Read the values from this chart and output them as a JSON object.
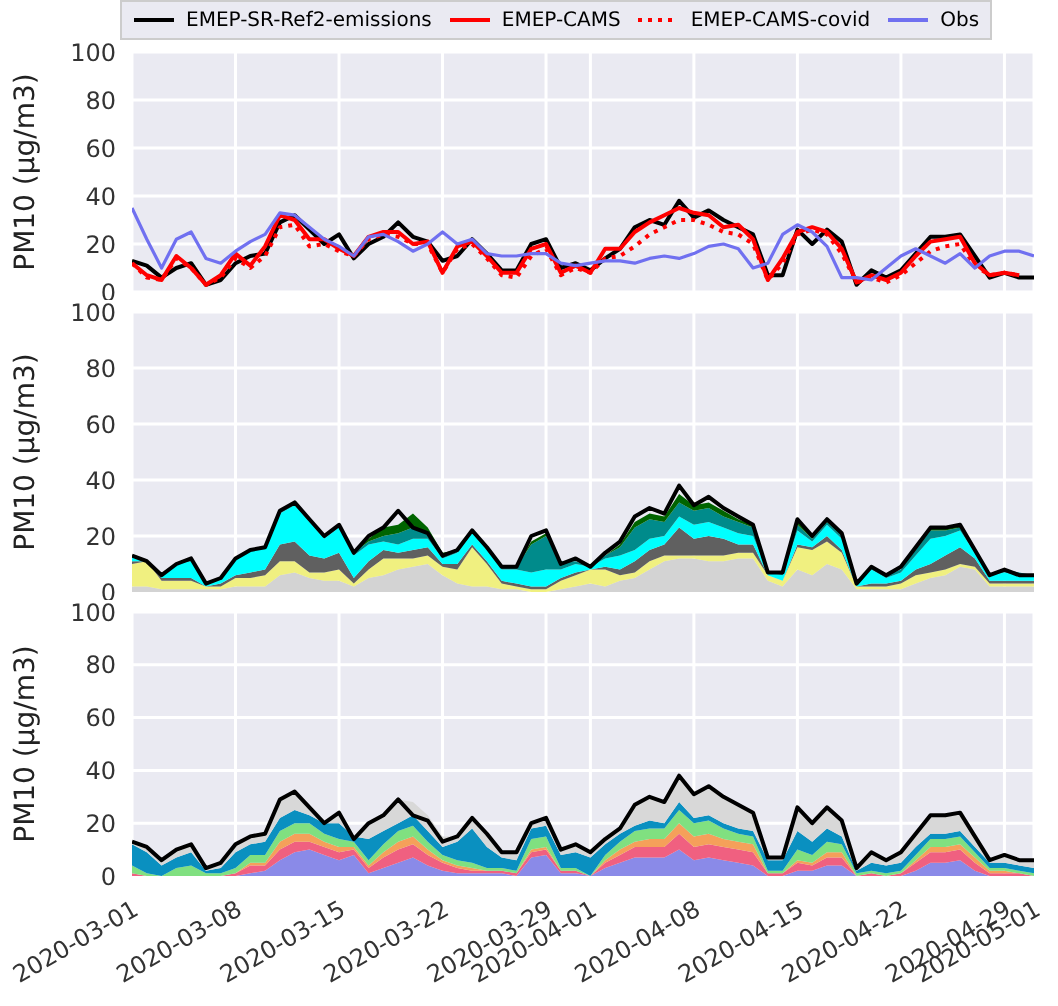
{
  "chart_data": [
    {
      "type": "line",
      "ylabel": "PM10 (µg/m3)",
      "ylim": [
        0,
        100
      ],
      "yticks": [
        0,
        20,
        40,
        60,
        80,
        100
      ],
      "grid": true,
      "legend": "top",
      "tick_labels": "y",
      "xlim": [
        "2020-03-01",
        "2020-05-01"
      ],
      "xticks": [
        "2020-03-01",
        "2020-03-08",
        "2020-03-15",
        "2020-03-22",
        "2020-03-29",
        "2020-04-01",
        "2020-04-08",
        "2020-04-15",
        "2020-04-22",
        "2020-04-29",
        "2020-05-01"
      ],
      "x": [
        "2020-03-01",
        "2020-03-02",
        "2020-03-03",
        "2020-03-04",
        "2020-03-05",
        "2020-03-06",
        "2020-03-07",
        "2020-03-08",
        "2020-03-09",
        "2020-03-10",
        "2020-03-11",
        "2020-03-12",
        "2020-03-13",
        "2020-03-14",
        "2020-03-15",
        "2020-03-16",
        "2020-03-17",
        "2020-03-18",
        "2020-03-19",
        "2020-03-20",
        "2020-03-21",
        "2020-03-22",
        "2020-03-23",
        "2020-03-24",
        "2020-03-25",
        "2020-03-26",
        "2020-03-27",
        "2020-03-28",
        "2020-03-29",
        "2020-03-30",
        "2020-03-31",
        "2020-04-01",
        "2020-04-02",
        "2020-04-03",
        "2020-04-04",
        "2020-04-05",
        "2020-04-06",
        "2020-04-07",
        "2020-04-08",
        "2020-04-09",
        "2020-04-10",
        "2020-04-11",
        "2020-04-12",
        "2020-04-13",
        "2020-04-14",
        "2020-04-15",
        "2020-04-16",
        "2020-04-17",
        "2020-04-18",
        "2020-04-19",
        "2020-04-20",
        "2020-04-21",
        "2020-04-22",
        "2020-04-23",
        "2020-04-24",
        "2020-04-25",
        "2020-04-26",
        "2020-04-27",
        "2020-04-28",
        "2020-04-29",
        "2020-04-30",
        "2020-05-01"
      ],
      "series": [
        {
          "name": "EMEP-SR-Ref2-emissions",
          "color": "#000000",
          "line_style": "solid",
          "values": [
            13,
            11,
            6,
            10,
            12,
            3,
            5,
            12,
            15,
            16,
            29,
            32,
            26,
            20,
            24,
            14,
            20,
            23,
            29,
            23,
            21,
            13,
            15,
            22,
            16,
            9,
            9,
            20,
            22,
            10,
            12,
            9,
            14,
            18,
            27,
            30,
            28,
            38,
            31,
            34,
            30,
            27,
            24,
            7,
            7,
            26,
            20,
            26,
            21,
            3,
            9,
            6,
            9,
            16,
            23,
            23,
            24,
            15,
            6,
            8,
            6,
            6
          ]
        },
        {
          "name": "EMEP-CAMS",
          "color": "#ff0000",
          "line_style": "solid",
          "values": [
            12,
            7,
            5,
            15,
            10,
            3,
            7,
            16,
            11,
            19,
            32,
            30,
            22,
            22,
            18,
            15,
            23,
            25,
            25,
            20,
            21,
            8,
            19,
            21,
            15,
            8,
            8,
            18,
            20,
            8,
            11,
            8,
            18,
            18,
            25,
            29,
            32,
            35,
            33,
            32,
            27,
            28,
            22,
            5,
            14,
            25,
            27,
            25,
            18,
            4,
            7,
            5,
            8,
            15,
            21,
            22,
            23,
            12,
            7,
            8,
            7,
            null
          ]
        },
        {
          "name": "EMEP-CAMS-covid",
          "color": "#ff0000",
          "line_style": "dotted",
          "values": [
            12,
            6,
            5,
            14,
            10,
            3,
            6,
            14,
            10,
            15,
            27,
            28,
            19,
            20,
            17,
            15,
            22,
            24,
            23,
            20,
            20,
            8,
            18,
            20,
            14,
            7,
            6,
            15,
            18,
            7,
            10,
            8,
            14,
            15,
            19,
            24,
            27,
            30,
            30,
            28,
            25,
            24,
            20,
            5,
            12,
            24,
            26,
            24,
            16,
            4,
            6,
            4,
            7,
            12,
            17,
            19,
            20,
            11,
            7,
            8,
            7,
            null
          ]
        },
        {
          "name": "Obs",
          "color": "#7070f0",
          "line_style": "solid",
          "values": [
            35,
            22,
            10,
            22,
            25,
            14,
            12,
            17,
            21,
            24,
            33,
            32,
            27,
            22,
            19,
            15,
            23,
            24,
            21,
            17,
            20,
            25,
            20,
            22,
            16,
            15,
            15,
            16,
            16,
            12,
            11,
            12,
            13,
            13,
            12,
            14,
            15,
            14,
            16,
            19,
            20,
            18,
            10,
            12,
            24,
            28,
            25,
            19,
            6,
            6,
            5,
            10,
            15,
            18,
            15,
            12,
            16,
            10,
            15,
            17,
            17,
            15
          ]
        }
      ]
    },
    {
      "type": "area",
      "stacked": true,
      "ylabel": "PM10 (µg/m3)",
      "ylim": [
        0,
        100
      ],
      "yticks": [
        0,
        20,
        40,
        60,
        80,
        100
      ],
      "grid": true,
      "tick_labels": "y",
      "xlim": [
        "2020-03-01",
        "2020-05-01"
      ],
      "xticks": [
        "2020-03-01",
        "2020-03-08",
        "2020-03-15",
        "2020-03-22",
        "2020-03-29",
        "2020-04-01",
        "2020-04-08",
        "2020-04-15",
        "2020-04-22",
        "2020-04-29",
        "2020-05-01"
      ],
      "x": [
        "2020-03-01",
        "2020-03-02",
        "2020-03-03",
        "2020-03-04",
        "2020-03-05",
        "2020-03-06",
        "2020-03-07",
        "2020-03-08",
        "2020-03-09",
        "2020-03-10",
        "2020-03-11",
        "2020-03-12",
        "2020-03-13",
        "2020-03-14",
        "2020-03-15",
        "2020-03-16",
        "2020-03-17",
        "2020-03-18",
        "2020-03-19",
        "2020-03-20",
        "2020-03-21",
        "2020-03-22",
        "2020-03-23",
        "2020-03-24",
        "2020-03-25",
        "2020-03-26",
        "2020-03-27",
        "2020-03-28",
        "2020-03-29",
        "2020-03-30",
        "2020-03-31",
        "2020-04-01",
        "2020-04-02",
        "2020-04-03",
        "2020-04-04",
        "2020-04-05",
        "2020-04-06",
        "2020-04-07",
        "2020-04-08",
        "2020-04-09",
        "2020-04-10",
        "2020-04-11",
        "2020-04-12",
        "2020-04-13",
        "2020-04-14",
        "2020-04-15",
        "2020-04-16",
        "2020-04-17",
        "2020-04-18",
        "2020-04-19",
        "2020-04-20",
        "2020-04-21",
        "2020-04-22",
        "2020-04-23",
        "2020-04-24",
        "2020-04-25",
        "2020-04-26",
        "2020-04-27",
        "2020-04-28",
        "2020-04-29",
        "2020-04-30",
        "2020-05-01"
      ],
      "series": [
        {
          "color": "#d3d3d3",
          "values": [
            2,
            2,
            1,
            1,
            1,
            1,
            1,
            2,
            2,
            2,
            6,
            7,
            5,
            4,
            4,
            2,
            5,
            6,
            8,
            9,
            10,
            6,
            3,
            2,
            2,
            1,
            1,
            0,
            0,
            1,
            2,
            3,
            2,
            4,
            5,
            8,
            11,
            12,
            12,
            11,
            11,
            12,
            12,
            4,
            2,
            8,
            6,
            10,
            8,
            1,
            1,
            1,
            1,
            3,
            5,
            6,
            9,
            8,
            2,
            2,
            2,
            2
          ]
        },
        {
          "color": "#f0f080",
          "values": [
            8,
            9,
            3,
            3,
            3,
            1,
            1,
            3,
            3,
            4,
            5,
            4,
            2,
            3,
            4,
            1,
            3,
            6,
            4,
            3,
            3,
            3,
            5,
            14,
            8,
            2,
            1,
            1,
            1,
            3,
            4,
            5,
            6,
            2,
            2,
            3,
            2,
            1,
            1,
            2,
            2,
            2,
            2,
            2,
            2,
            8,
            9,
            8,
            6,
            1,
            1,
            1,
            2,
            3,
            2,
            2,
            1,
            1,
            1,
            1,
            1,
            1
          ]
        },
        {
          "color": "#606060",
          "values": [
            1,
            0,
            1,
            1,
            1,
            0,
            1,
            1,
            2,
            2,
            6,
            7,
            6,
            5,
            6,
            2,
            3,
            3,
            2,
            3,
            3,
            1,
            2,
            1,
            1,
            1,
            1,
            1,
            1,
            1,
            1,
            0,
            1,
            2,
            4,
            4,
            4,
            10,
            6,
            7,
            6,
            3,
            3,
            0,
            0,
            1,
            1,
            2,
            1,
            0,
            1,
            1,
            1,
            2,
            3,
            5,
            6,
            3,
            1,
            1,
            1,
            1
          ]
        },
        {
          "color": "#00ffff",
          "values": [
            2,
            0,
            1,
            5,
            6,
            1,
            2,
            6,
            8,
            8,
            11,
            13,
            12,
            7,
            9,
            8,
            6,
            3,
            3,
            4,
            3,
            2,
            4,
            4,
            4,
            4,
            5,
            5,
            6,
            3,
            3,
            1,
            3,
            5,
            4,
            4,
            3,
            4,
            5,
            5,
            4,
            4,
            3,
            1,
            2,
            5,
            2,
            4,
            4,
            1,
            5,
            2,
            3,
            5,
            9,
            7,
            6,
            2,
            2,
            3,
            2,
            2
          ]
        },
        {
          "color": "#008b8b",
          "values": [
            0,
            0,
            0,
            0,
            1,
            0,
            0,
            0,
            0,
            0,
            1,
            1,
            1,
            1,
            1,
            1,
            1,
            2,
            4,
            4,
            2,
            1,
            1,
            1,
            1,
            1,
            1,
            10,
            12,
            3,
            1,
            0,
            1,
            3,
            8,
            7,
            5,
            5,
            5,
            5,
            4,
            4,
            3,
            0,
            1,
            2,
            1,
            1,
            1,
            0,
            1,
            1,
            1,
            2,
            3,
            2,
            1,
            1,
            0,
            1,
            1,
            0
          ]
        },
        {
          "color": "#006400",
          "values": [
            0,
            0,
            0,
            0,
            0,
            0,
            0,
            0,
            0,
            0,
            0,
            0,
            0,
            0,
            0,
            0,
            1,
            3,
            3,
            5,
            2,
            1,
            0,
            0,
            0,
            0,
            0,
            1,
            1,
            0,
            0,
            0,
            0,
            1,
            2,
            2,
            2,
            3,
            2,
            2,
            2,
            1,
            1,
            0,
            0,
            1,
            1,
            1,
            1,
            0,
            0,
            0,
            0,
            1,
            1,
            1,
            1,
            0,
            0,
            0,
            0,
            0
          ]
        },
        {
          "type": "line",
          "color": "#000000",
          "values": [
            13,
            11,
            6,
            10,
            12,
            3,
            5,
            12,
            15,
            16,
            29,
            32,
            26,
            20,
            24,
            14,
            20,
            23,
            29,
            23,
            21,
            13,
            15,
            22,
            16,
            9,
            9,
            20,
            22,
            10,
            12,
            9,
            14,
            18,
            27,
            30,
            28,
            38,
            31,
            34,
            30,
            27,
            24,
            7,
            7,
            26,
            20,
            26,
            21,
            3,
            9,
            6,
            9,
            16,
            23,
            23,
            24,
            15,
            6,
            8,
            6,
            6
          ]
        }
      ]
    },
    {
      "type": "area",
      "stacked": true,
      "ylabel": "PM10 (µg/m3)",
      "ylim": [
        0,
        100
      ],
      "yticks": [
        0,
        20,
        40,
        60,
        80,
        100
      ],
      "grid": true,
      "xlim": [
        "2020-03-01",
        "2020-05-01"
      ],
      "xticks": [
        "2020-03-01",
        "2020-03-08",
        "2020-03-15",
        "2020-03-22",
        "2020-03-29",
        "2020-04-01",
        "2020-04-08",
        "2020-04-15",
        "2020-04-22",
        "2020-04-29",
        "2020-05-01"
      ],
      "x": [
        "2020-03-01",
        "2020-03-02",
        "2020-03-03",
        "2020-03-04",
        "2020-03-05",
        "2020-03-06",
        "2020-03-07",
        "2020-03-08",
        "2020-03-09",
        "2020-03-10",
        "2020-03-11",
        "2020-03-12",
        "2020-03-13",
        "2020-03-14",
        "2020-03-15",
        "2020-03-16",
        "2020-03-17",
        "2020-03-18",
        "2020-03-19",
        "2020-03-20",
        "2020-03-21",
        "2020-03-22",
        "2020-03-23",
        "2020-03-24",
        "2020-03-25",
        "2020-03-26",
        "2020-03-27",
        "2020-03-28",
        "2020-03-29",
        "2020-03-30",
        "2020-03-31",
        "2020-04-01",
        "2020-04-02",
        "2020-04-03",
        "2020-04-04",
        "2020-04-05",
        "2020-04-06",
        "2020-04-07",
        "2020-04-08",
        "2020-04-09",
        "2020-04-10",
        "2020-04-11",
        "2020-04-12",
        "2020-04-13",
        "2020-04-14",
        "2020-04-15",
        "2020-04-16",
        "2020-04-17",
        "2020-04-18",
        "2020-04-19",
        "2020-04-20",
        "2020-04-21",
        "2020-04-22",
        "2020-04-23",
        "2020-04-24",
        "2020-04-25",
        "2020-04-26",
        "2020-04-27",
        "2020-04-28",
        "2020-04-29",
        "2020-04-30",
        "2020-05-01"
      ],
      "series": [
        {
          "color": "#8a8ae8",
          "values": [
            0,
            0,
            0,
            0,
            0,
            0,
            0,
            0,
            1,
            2,
            6,
            9,
            10,
            8,
            6,
            8,
            1,
            3,
            5,
            7,
            4,
            2,
            1,
            1,
            1,
            1,
            0,
            7,
            8,
            1,
            1,
            0,
            3,
            5,
            7,
            7,
            7,
            10,
            6,
            7,
            6,
            5,
            4,
            0,
            0,
            2,
            2,
            4,
            4,
            0,
            0,
            0,
            0,
            2,
            5,
            5,
            6,
            2,
            0,
            0,
            0,
            0
          ]
        },
        {
          "color": "#f06080",
          "values": [
            1,
            0,
            0,
            0,
            0,
            0,
            0,
            1,
            3,
            2,
            4,
            4,
            3,
            3,
            3,
            2,
            2,
            4,
            5,
            5,
            4,
            3,
            2,
            1,
            1,
            1,
            1,
            2,
            2,
            1,
            1,
            0,
            2,
            3,
            4,
            4,
            4,
            6,
            5,
            5,
            5,
            5,
            5,
            1,
            1,
            3,
            2,
            3,
            3,
            0,
            1,
            0,
            1,
            3,
            4,
            4,
            4,
            3,
            1,
            1,
            1,
            0
          ]
        },
        {
          "color": "#f5a05a",
          "values": [
            0,
            0,
            0,
            0,
            0,
            0,
            0,
            0,
            1,
            1,
            3,
            3,
            3,
            2,
            2,
            1,
            1,
            2,
            3,
            3,
            2,
            1,
            1,
            1,
            0,
            0,
            0,
            1,
            1,
            0,
            0,
            0,
            1,
            2,
            2,
            3,
            3,
            4,
            4,
            4,
            3,
            3,
            3,
            0,
            0,
            1,
            1,
            2,
            2,
            0,
            0,
            0,
            0,
            1,
            2,
            2,
            2,
            2,
            1,
            1,
            0,
            0
          ]
        },
        {
          "color": "#80e080",
          "values": [
            3,
            1,
            0,
            3,
            4,
            1,
            1,
            2,
            3,
            3,
            4,
            4,
            4,
            3,
            3,
            2,
            2,
            3,
            4,
            4,
            3,
            2,
            2,
            2,
            1,
            1,
            1,
            4,
            4,
            1,
            1,
            0,
            2,
            3,
            4,
            4,
            4,
            5,
            5,
            5,
            4,
            3,
            3,
            1,
            1,
            4,
            3,
            4,
            3,
            1,
            1,
            1,
            1,
            2,
            3,
            3,
            3,
            2,
            1,
            1,
            1,
            1
          ]
        },
        {
          "color": "#0a90c0",
          "values": [
            8,
            8,
            4,
            4,
            5,
            1,
            2,
            6,
            4,
            5,
            5,
            5,
            3,
            4,
            6,
            2,
            8,
            5,
            3,
            4,
            4,
            3,
            7,
            13,
            8,
            4,
            4,
            4,
            4,
            5,
            6,
            7,
            4,
            3,
            2,
            3,
            2,
            3,
            2,
            2,
            2,
            2,
            2,
            4,
            4,
            7,
            5,
            5,
            3,
            1,
            3,
            3,
            3,
            3,
            2,
            2,
            2,
            2,
            2,
            2,
            2,
            2
          ]
        },
        {
          "color": "#d8d8d8",
          "values": [
            1,
            2,
            2,
            3,
            3,
            1,
            2,
            3,
            3,
            3,
            7,
            7,
            3,
            0,
            4,
            0,
            6,
            6,
            9,
            5,
            6,
            4,
            2,
            4,
            5,
            2,
            3,
            2,
            3,
            3,
            3,
            2,
            2,
            2,
            8,
            9,
            8,
            10,
            9,
            11,
            10,
            9,
            7,
            1,
            1,
            9,
            7,
            8,
            6,
            1,
            4,
            2,
            4,
            5,
            7,
            7,
            7,
            4,
            1,
            3,
            2,
            3
          ]
        },
        {
          "type": "line",
          "color": "#000000",
          "values": [
            13,
            11,
            6,
            10,
            12,
            3,
            5,
            12,
            15,
            16,
            29,
            32,
            26,
            20,
            24,
            14,
            20,
            23,
            29,
            23,
            21,
            13,
            15,
            22,
            16,
            9,
            9,
            20,
            22,
            10,
            12,
            9,
            14,
            18,
            27,
            30,
            28,
            38,
            31,
            34,
            30,
            27,
            24,
            7,
            7,
            26,
            20,
            26,
            21,
            3,
            9,
            6,
            9,
            16,
            23,
            23,
            24,
            15,
            6,
            8,
            6,
            6
          ]
        }
      ]
    }
  ]
}
